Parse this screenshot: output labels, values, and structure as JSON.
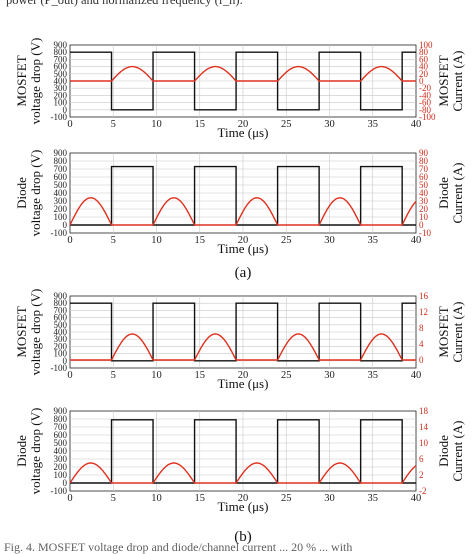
{
  "caption_top": "power (P_out) and normalized frequency (f_n).",
  "caption_bottom": "Fig. 4. MOSFET voltage drop and diode/channel current ... 20 % ... with",
  "colors": {
    "voltage": "#111111",
    "current": "#e0301e",
    "right_axis": "#cc2a1a",
    "grid": "#c8c8c8"
  },
  "chart_data": [
    {
      "type": "line",
      "subfigure": "(a)",
      "panel": "MOSFET",
      "xlabel": "Time (μs)",
      "ylabel_left": "MOSFET voltage drop (V)",
      "ylabel_right": "MOSFET Current (A)",
      "xlim": [
        0,
        40
      ],
      "ylim_left": [
        -100,
        900
      ],
      "ylim_right": [
        -100,
        100
      ],
      "xticks": [
        0,
        5,
        10,
        15,
        20,
        25,
        30,
        35,
        40
      ],
      "yticks_left": [
        -100,
        0,
        100,
        200,
        300,
        400,
        500,
        600,
        700,
        800,
        900
      ],
      "yticks_right": [
        -100,
        -80,
        -60,
        -40,
        -20,
        0,
        20,
        40,
        60,
        80,
        100
      ],
      "grid": true,
      "period": 9.6,
      "series": [
        {
          "axis": "left",
          "waveform": "voltage_high_low",
          "high": 800,
          "low": 0,
          "high_intervals": [
            [
              0,
              4.8
            ],
            [
              9.6,
              14.4
            ],
            [
              19.2,
              24.0
            ],
            [
              28.8,
              33.6
            ],
            [
              38.4,
              40
            ]
          ]
        },
        {
          "axis": "right",
          "waveform": "current_half_sine_during_low",
          "peak": 40,
          "baseline": 0
        }
      ]
    },
    {
      "type": "line",
      "subfigure": "(a)",
      "panel": "Diode",
      "xlabel": "Time (μs)",
      "ylabel_left": "Diode voltage drop (V)",
      "ylabel_right": "Diode Current (A)",
      "xlim": [
        0,
        40
      ],
      "ylim_left": [
        -100,
        900
      ],
      "ylim_right": [
        -10,
        90
      ],
      "xticks": [
        0,
        5,
        10,
        15,
        20,
        25,
        30,
        35,
        40
      ],
      "yticks_left": [
        -100,
        0,
        100,
        200,
        300,
        400,
        500,
        600,
        700,
        800,
        900
      ],
      "yticks_right": [
        -10,
        0,
        10,
        20,
        30,
        40,
        50,
        60,
        70,
        80,
        90
      ],
      "grid": true,
      "period": 9.6,
      "series": [
        {
          "axis": "left",
          "waveform": "voltage_low_high",
          "high": 730,
          "low": 0,
          "high_intervals": [
            [
              4.8,
              9.6
            ],
            [
              14.4,
              19.2
            ],
            [
              24.0,
              28.8
            ],
            [
              33.6,
              38.4
            ]
          ]
        },
        {
          "axis": "right",
          "waveform": "current_half_sine_during_low",
          "peak": 34,
          "baseline": 0
        }
      ]
    },
    {
      "type": "line",
      "subfigure": "(b)",
      "panel": "MOSFET",
      "xlabel": "Time (μs)",
      "ylabel_left": "MOSFET voltage drop (V)",
      "ylabel_right": "MOSFET Current (A)",
      "xlim": [
        0,
        40
      ],
      "ylim_left": [
        -100,
        900
      ],
      "ylim_right": [
        -2,
        16
      ],
      "xticks": [
        0,
        5,
        10,
        15,
        20,
        25,
        30,
        35,
        40
      ],
      "yticks_left": [
        -100,
        0,
        100,
        200,
        300,
        400,
        500,
        600,
        700,
        800,
        900
      ],
      "yticks_right": [
        0,
        4,
        8,
        12,
        16
      ],
      "grid": true,
      "period": 9.6,
      "series": [
        {
          "axis": "left",
          "waveform": "voltage_high_low",
          "high": 800,
          "low": 0,
          "high_intervals": [
            [
              0,
              4.8
            ],
            [
              9.6,
              14.4
            ],
            [
              19.2,
              24.0
            ],
            [
              28.8,
              33.6
            ],
            [
              38.4,
              40
            ]
          ]
        },
        {
          "axis": "right",
          "waveform": "current_half_sine_during_low",
          "peak": 6.5,
          "baseline": 0
        }
      ]
    },
    {
      "type": "line",
      "subfigure": "(b)",
      "panel": "Diode",
      "xlabel": "Time (μs)",
      "ylabel_left": "Diode voltage drop (V)",
      "ylabel_right": "Diode Current (A)",
      "xlim": [
        0,
        40
      ],
      "ylim_left": [
        -100,
        900
      ],
      "ylim_right": [
        -2,
        18
      ],
      "xticks": [
        0,
        5,
        10,
        15,
        20,
        25,
        30,
        35,
        40
      ],
      "yticks_left": [
        -100,
        0,
        100,
        200,
        300,
        400,
        500,
        600,
        700,
        800,
        900
      ],
      "yticks_right": [
        -2,
        2,
        6,
        10,
        14,
        18
      ],
      "grid": true,
      "period": 9.6,
      "series": [
        {
          "axis": "left",
          "waveform": "voltage_low_high",
          "high": 790,
          "low": 0,
          "high_intervals": [
            [
              4.8,
              9.6
            ],
            [
              14.4,
              19.2
            ],
            [
              24.0,
              28.8
            ],
            [
              33.6,
              38.4
            ]
          ]
        },
        {
          "axis": "right",
          "waveform": "current_half_sine_during_low",
          "peak": 5,
          "baseline": 0
        }
      ]
    }
  ]
}
